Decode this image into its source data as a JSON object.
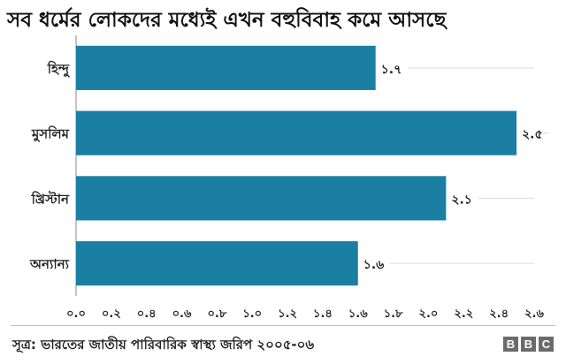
{
  "title": "সব ধর্মের লোকদের মধ্যেই এখন বহুবিবাহ কমে আসছে",
  "source": "সূত্র: ভারতের জাতীয় পারিবারিক স্বাস্থ্য জরিপ ২০০৫-০৬",
  "logo": "BBC",
  "colors": {
    "bar": "#1a7fa3",
    "grid": "#dcdcdc",
    "text": "#222222"
  },
  "chart_data": {
    "type": "bar",
    "orientation": "horizontal",
    "categories": [
      "হিন্দু",
      "মুসলিম",
      "খ্রিস্টান",
      "অন্যান্য"
    ],
    "values": [
      1.7,
      2.5,
      2.1,
      1.6
    ],
    "value_labels": [
      "১.৭",
      "২.৫",
      "২.১",
      "১.৬"
    ],
    "xlim": [
      0,
      2.6
    ],
    "xticks": [
      0,
      0.2,
      0.4,
      0.6,
      0.8,
      1.0,
      1.2,
      1.4,
      1.6,
      1.8,
      2.0,
      2.2,
      2.4,
      2.6
    ],
    "xtick_labels": [
      "০.০",
      "০.২",
      "০.৪",
      "০.৬",
      "০.৮",
      "১.০",
      "১.২",
      "১.৪",
      "১.৬",
      "১.৮",
      "২.০",
      "২.২",
      "২.৪",
      "২.৬"
    ],
    "grid": true,
    "legend": "none"
  }
}
